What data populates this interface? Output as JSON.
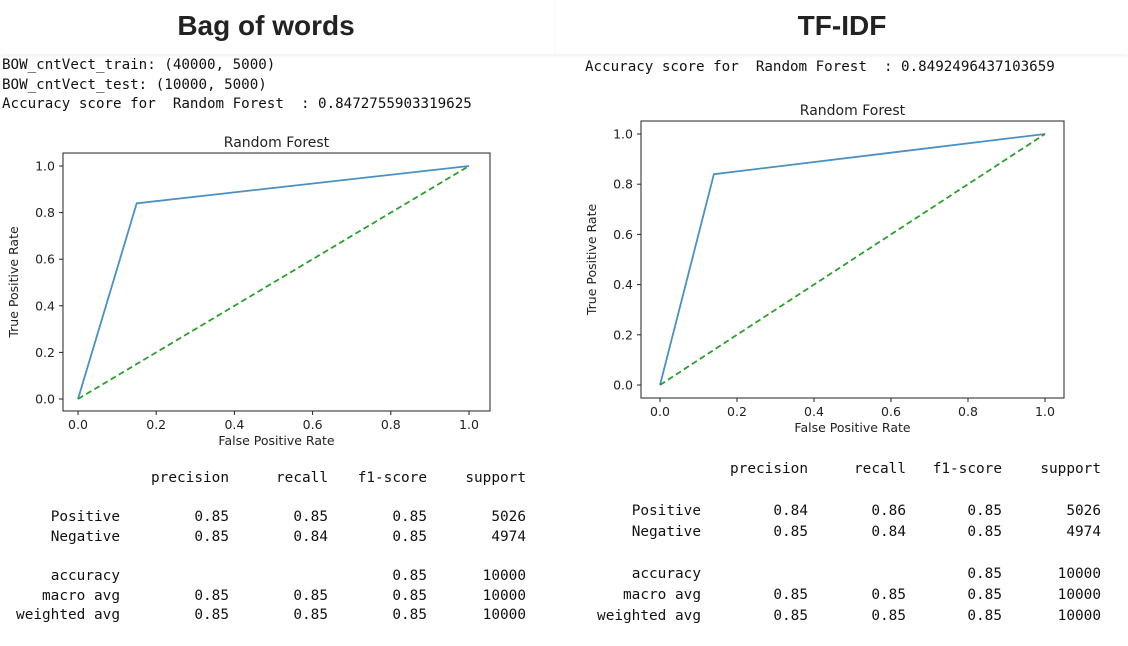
{
  "panels": [
    {
      "heading": "Bag of words",
      "console_lines": [
        "BOW_cntVect_train: (40000, 5000)",
        "BOW_cntVect_test: (10000, 5000)",
        "Accuracy score for  Random Forest  : 0.8472755903319625"
      ],
      "report": {
        "headers": [
          "precision",
          "recall",
          "f1-score",
          "support"
        ],
        "rows": [
          {
            "label": "Positive",
            "precision": "0.85",
            "recall": "0.85",
            "f1": "0.85",
            "support": "5026"
          },
          {
            "label": "Negative",
            "precision": "0.85",
            "recall": "0.84",
            "f1": "0.85",
            "support": "4974"
          },
          {
            "label": "accuracy",
            "precision": "",
            "recall": "",
            "f1": "0.85",
            "support": "10000"
          },
          {
            "label": "macro avg",
            "precision": "0.85",
            "recall": "0.85",
            "f1": "0.85",
            "support": "10000"
          },
          {
            "label": "weighted avg",
            "precision": "0.85",
            "recall": "0.85",
            "f1": "0.85",
            "support": "10000"
          }
        ]
      }
    },
    {
      "heading": "TF-IDF",
      "console_lines": [
        "Accuracy score for  Random Forest  : 0.8492496437103659"
      ],
      "report": {
        "headers": [
          "precision",
          "recall",
          "f1-score",
          "support"
        ],
        "rows": [
          {
            "label": "Positive",
            "precision": "0.84",
            "recall": "0.86",
            "f1": "0.85",
            "support": "5026"
          },
          {
            "label": "Negative",
            "precision": "0.85",
            "recall": "0.84",
            "f1": "0.85",
            "support": "4974"
          },
          {
            "label": "accuracy",
            "precision": "",
            "recall": "",
            "f1": "0.85",
            "support": "10000"
          },
          {
            "label": "macro avg",
            "precision": "0.85",
            "recall": "0.85",
            "f1": "0.85",
            "support": "10000"
          },
          {
            "label": "weighted avg",
            "precision": "0.85",
            "recall": "0.85",
            "f1": "0.85",
            "support": "10000"
          }
        ]
      }
    }
  ],
  "chart_data": [
    {
      "type": "line",
      "title": "Random Forest",
      "xlabel": "False Positive Rate",
      "ylabel": "True Positive Rate",
      "xlim": [
        0.0,
        1.0
      ],
      "ylim": [
        0.0,
        1.0
      ],
      "xticks": [
        "0.0",
        "0.2",
        "0.4",
        "0.6",
        "0.8",
        "1.0"
      ],
      "yticks": [
        "0.0",
        "0.2",
        "0.4",
        "0.6",
        "0.8",
        "1.0"
      ],
      "grid": false,
      "series": [
        {
          "style": "solid",
          "color": "#4a90c4",
          "x": [
            0.0,
            0.15,
            1.0
          ],
          "y": [
            0.0,
            0.84,
            1.0
          ]
        },
        {
          "style": "dashed",
          "color": "#2ca02c",
          "x": [
            0.0,
            1.0
          ],
          "y": [
            0.0,
            1.0
          ]
        }
      ]
    },
    {
      "type": "line",
      "title": "Random Forest",
      "xlabel": "False Positive Rate",
      "ylabel": "True Positive Rate",
      "xlim": [
        0.0,
        1.0
      ],
      "ylim": [
        0.0,
        1.0
      ],
      "xticks": [
        "0.0",
        "0.2",
        "0.4",
        "0.6",
        "0.8",
        "1.0"
      ],
      "yticks": [
        "0.0",
        "0.2",
        "0.4",
        "0.6",
        "0.8",
        "1.0"
      ],
      "grid": false,
      "series": [
        {
          "style": "solid",
          "color": "#4a90c4",
          "x": [
            0.0,
            0.14,
            1.0
          ],
          "y": [
            0.0,
            0.84,
            1.0
          ]
        },
        {
          "style": "dashed",
          "color": "#2ca02c",
          "x": [
            0.0,
            1.0
          ],
          "y": [
            0.0,
            1.0
          ]
        }
      ]
    }
  ]
}
